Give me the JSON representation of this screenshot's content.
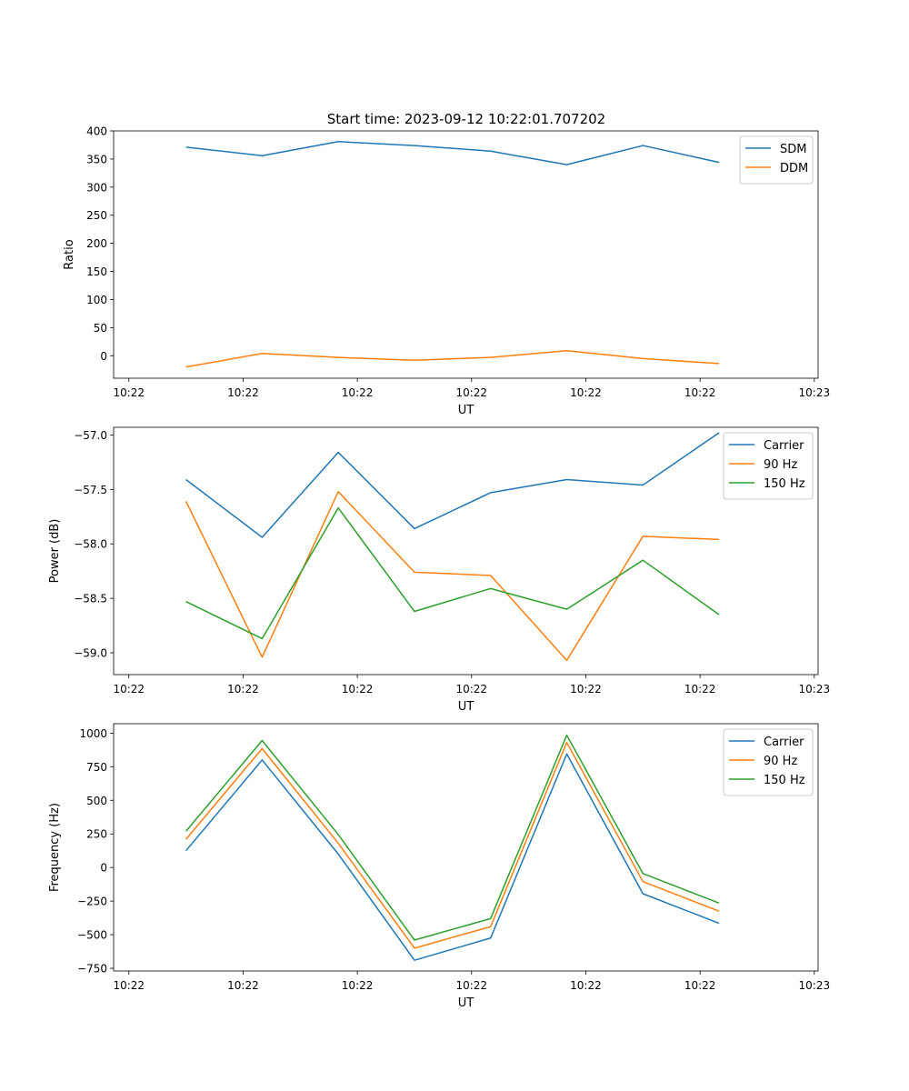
{
  "figure": {
    "title": "Start time: 2023-09-12 10:22:01.707202"
  },
  "colors": {
    "blue": "#1f77b4",
    "orange": "#ff7f0e",
    "green": "#2ca02c"
  },
  "chart_data": [
    {
      "type": "line",
      "title": "Start time: 2023-09-12 10:22:01.707202",
      "xlabel": "UT",
      "ylabel": "Ratio",
      "x": [
        0,
        1,
        2,
        3,
        4,
        5,
        6,
        7
      ],
      "x_ticks": [
        -0.75,
        0.75,
        2.25,
        3.75,
        5.25,
        6.75,
        8.25
      ],
      "x_tick_labels": [
        "10:22",
        "10:22",
        "10:22",
        "10:22",
        "10:22",
        "10:22",
        "10:23"
      ],
      "xlim": [
        -0.95,
        8.3
      ],
      "ylim": [
        -40,
        400
      ],
      "y_ticks": [
        0,
        50,
        100,
        150,
        200,
        250,
        300,
        350,
        400
      ],
      "y_tick_labels": [
        "0",
        "50",
        "100",
        "150",
        "200",
        "250",
        "300",
        "350",
        "400"
      ],
      "legend": "top-right",
      "series": [
        {
          "name": "SDM",
          "color": "#1f77b4",
          "values": [
            371,
            356,
            381,
            374,
            364,
            340,
            374,
            344
          ]
        },
        {
          "name": "DDM",
          "color": "#ff7f0e",
          "values": [
            -20,
            4,
            -3,
            -8,
            -3,
            9,
            -5,
            -14
          ]
        }
      ]
    },
    {
      "type": "line",
      "title": "",
      "xlabel": "UT",
      "ylabel": "Power (dB)",
      "x": [
        0,
        1,
        2,
        3,
        4,
        5,
        6,
        7
      ],
      "x_ticks": [
        -0.75,
        0.75,
        2.25,
        3.75,
        5.25,
        6.75,
        8.25
      ],
      "x_tick_labels": [
        "10:22",
        "10:22",
        "10:22",
        "10:22",
        "10:22",
        "10:22",
        "10:23"
      ],
      "xlim": [
        -0.95,
        8.3
      ],
      "ylim": [
        -59.2,
        -56.93
      ],
      "y_ticks": [
        -59.0,
        -58.5,
        -58.0,
        -57.5,
        -57.0
      ],
      "y_tick_labels": [
        "−59.0",
        "−58.5",
        "−58.0",
        "−57.5",
        "−57.0"
      ],
      "legend": "top-right",
      "series": [
        {
          "name": "Carrier",
          "color": "#1f77b4",
          "values": [
            -57.41,
            -57.94,
            -57.16,
            -57.86,
            -57.53,
            -57.41,
            -57.46,
            -56.98
          ]
        },
        {
          "name": "90 Hz",
          "color": "#ff7f0e",
          "values": [
            -57.61,
            -59.04,
            -57.52,
            -58.26,
            -58.29,
            -59.07,
            -57.93,
            -57.96
          ]
        },
        {
          "name": "150 Hz",
          "color": "#2ca02c",
          "values": [
            -58.53,
            -58.87,
            -57.67,
            -58.62,
            -58.41,
            -58.6,
            -58.15,
            -58.65
          ]
        }
      ]
    },
    {
      "type": "line",
      "title": "",
      "xlabel": "UT",
      "ylabel": "Frequency (Hz)",
      "x": [
        0,
        1,
        2,
        3,
        4,
        5,
        6,
        7
      ],
      "x_ticks": [
        -0.75,
        0.75,
        2.25,
        3.75,
        5.25,
        6.75,
        8.25
      ],
      "x_tick_labels": [
        "10:22",
        "10:22",
        "10:22",
        "10:22",
        "10:22",
        "10:22",
        "10:23"
      ],
      "xlim": [
        -0.95,
        8.3
      ],
      "ylim": [
        -770,
        1070
      ],
      "y_ticks": [
        -750,
        -500,
        -250,
        0,
        250,
        500,
        750,
        1000
      ],
      "y_tick_labels": [
        "−750",
        "−500",
        "−250",
        "0",
        "250",
        "500",
        "750",
        "1000"
      ],
      "legend": "top-right",
      "series": [
        {
          "name": "Carrier",
          "color": "#1f77b4",
          "values": [
            125,
            800,
            100,
            -690,
            -525,
            845,
            -195,
            -415
          ]
        },
        {
          "name": "90 Hz",
          "color": "#ff7f0e",
          "values": [
            210,
            885,
            180,
            -600,
            -440,
            930,
            -105,
            -325
          ]
        },
        {
          "name": "150 Hz",
          "color": "#2ca02c",
          "values": [
            270,
            945,
            245,
            -540,
            -380,
            985,
            -45,
            -265
          ]
        }
      ]
    }
  ]
}
